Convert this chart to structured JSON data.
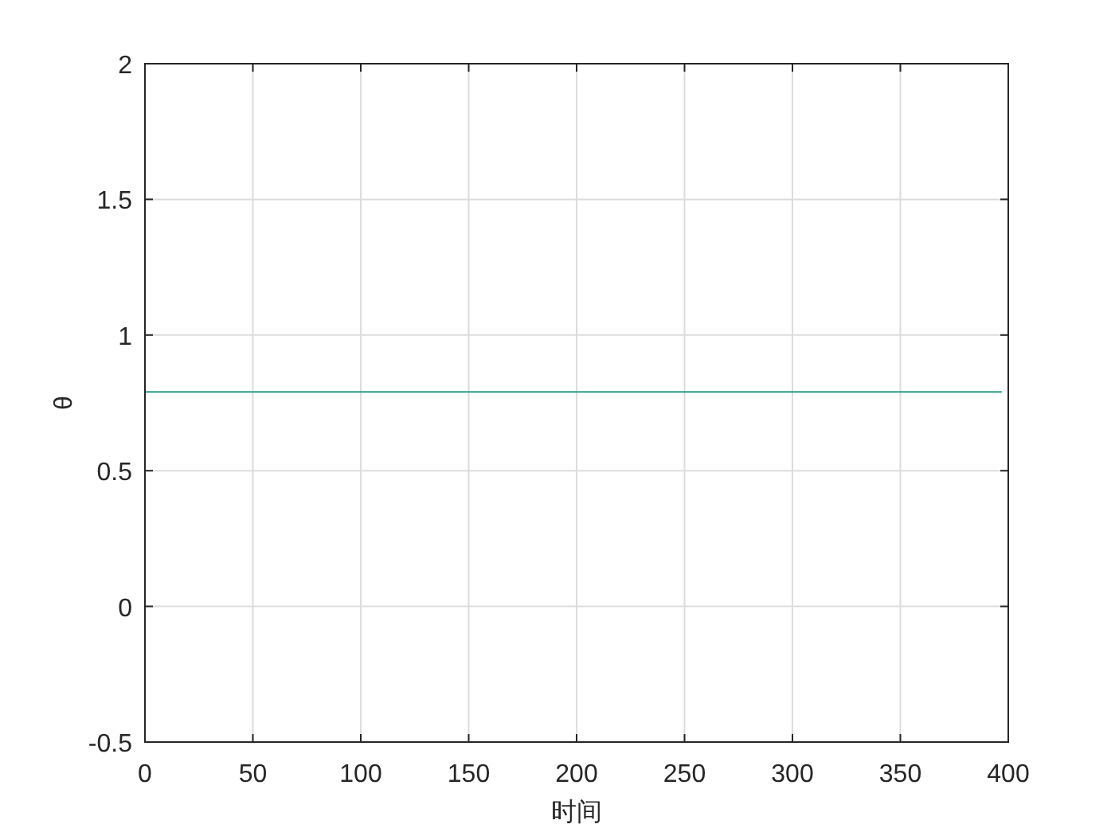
{
  "chart_data": {
    "type": "line",
    "xlabel": "时间",
    "ylabel": "θ",
    "series": [
      {
        "color": "#2e9c86",
        "x": [
          0,
          397
        ],
        "values": [
          0.79,
          0.79
        ]
      }
    ],
    "xlim": [
      0,
      400
    ],
    "ylim": [
      -0.5,
      2
    ],
    "xticks": [
      0,
      50,
      100,
      150,
      200,
      250,
      300,
      350,
      400
    ],
    "yticks": [
      -0.5,
      0,
      0.5,
      1,
      1.5,
      2
    ],
    "grid": true,
    "marker": "none",
    "line_style": "solid"
  }
}
